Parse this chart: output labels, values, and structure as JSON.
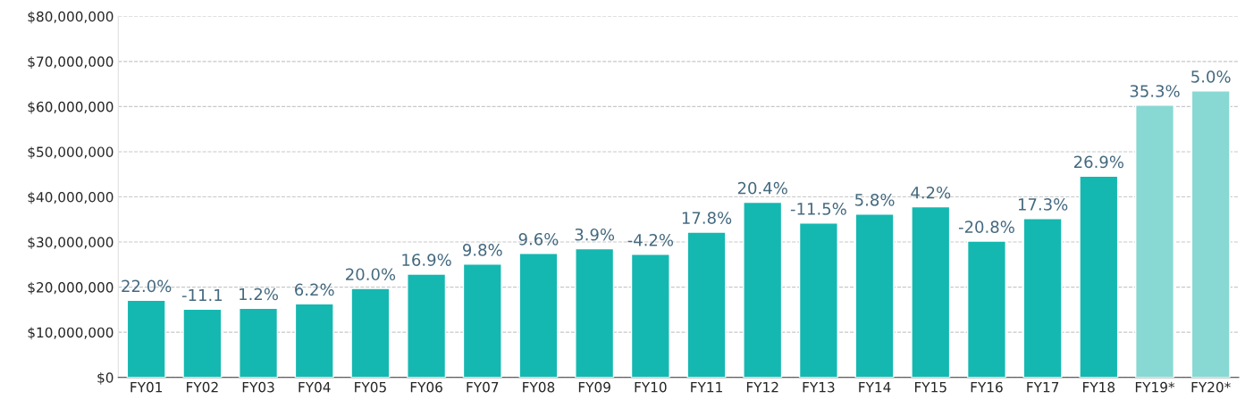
{
  "chart_data": {
    "type": "bar",
    "categories": [
      "FY01",
      "FY02",
      "FY03",
      "FY04",
      "FY05",
      "FY06",
      "FY07",
      "FY08",
      "FY09",
      "FY10",
      "FY11",
      "FY12",
      "FY13",
      "FY14",
      "FY15",
      "FY16",
      "FY17",
      "FY18",
      "FY19*",
      "FY20*"
    ],
    "values": [
      17100000,
      15100000,
      15300000,
      16300000,
      19700000,
      22900000,
      25100000,
      27500000,
      28500000,
      27300000,
      32200000,
      38800000,
      34200000,
      36200000,
      37800000,
      30200000,
      35200000,
      44600000,
      60300000,
      63500000
    ],
    "colors": [
      "#14b8b0",
      "#14b8b0",
      "#14b8b0",
      "#14b8b0",
      "#14b8b0",
      "#14b8b0",
      "#14b8b0",
      "#14b8b0",
      "#14b8b0",
      "#14b8b0",
      "#14b8b0",
      "#14b8b0",
      "#14b8b0",
      "#14b8b0",
      "#14b8b0",
      "#14b8b0",
      "#14b8b0",
      "#14b8b0",
      "#88d8d3",
      "#88d8d3"
    ],
    "annotations": [
      {
        "text": "22.0%",
        "x": "FY01",
        "y": 17100000
      },
      {
        "text": "-11.1",
        "x": "FY02",
        "y": 15100000
      },
      {
        "text": "1.2%",
        "x": "FY03",
        "y": 15300000
      },
      {
        "text": "6.2%",
        "x": "FY04",
        "y": 16300000
      },
      {
        "text": "20.0%",
        "x": "FY05",
        "y": 19700000
      },
      {
        "text": "16.9%",
        "x": "FY06",
        "y": 22900000
      },
      {
        "text": "9.8%",
        "x": "FY07",
        "y": 25100000
      },
      {
        "text": "9.6%",
        "x": "FY08",
        "y": 27500000
      },
      {
        "text": "3.9%",
        "x": "FY09",
        "y": 28500000
      },
      {
        "text": "-4.2%",
        "x": "FY10",
        "y": 27300000
      },
      {
        "text": "17.8%",
        "x": "FY11",
        "y": 32200000
      },
      {
        "text": "20.4%",
        "x": "FY12",
        "y": 38800000
      },
      {
        "text": "-11.5%",
        "x": "FY13",
        "y": 34200000
      },
      {
        "text": "5.8%",
        "x": "FY14",
        "y": 36200000
      },
      {
        "text": "4.2%",
        "x": "FY15",
        "y": 37800000
      },
      {
        "text": "-20.8%",
        "x": "FY16",
        "y": 30200000
      },
      {
        "text": "17.3%",
        "x": "FY17",
        "y": 35200000
      },
      {
        "text": "26.9%",
        "x": "FY18",
        "y": 44600000
      },
      {
        "text": "35.3%",
        "x": "FY19*",
        "y": 60300000
      },
      {
        "text": "5.0%",
        "x": "FY20*",
        "y": 63500000
      }
    ],
    "ylim": [
      0,
      80000000
    ],
    "yticks": [
      {
        "value": 0,
        "label": "$0"
      },
      {
        "value": 10000000,
        "label": "$10,000,000"
      },
      {
        "value": 20000000,
        "label": "$20,000,000"
      },
      {
        "value": 30000000,
        "label": "$30,000,000"
      },
      {
        "value": 40000000,
        "label": "$40,000,000"
      },
      {
        "value": 50000000,
        "label": "$50,000,000"
      },
      {
        "value": 60000000,
        "label": "$60,000,000"
      },
      {
        "value": 70000000,
        "label": "$70,000,000"
      },
      {
        "value": 80000000,
        "label": "$80,000,000"
      }
    ],
    "grid": "y"
  }
}
